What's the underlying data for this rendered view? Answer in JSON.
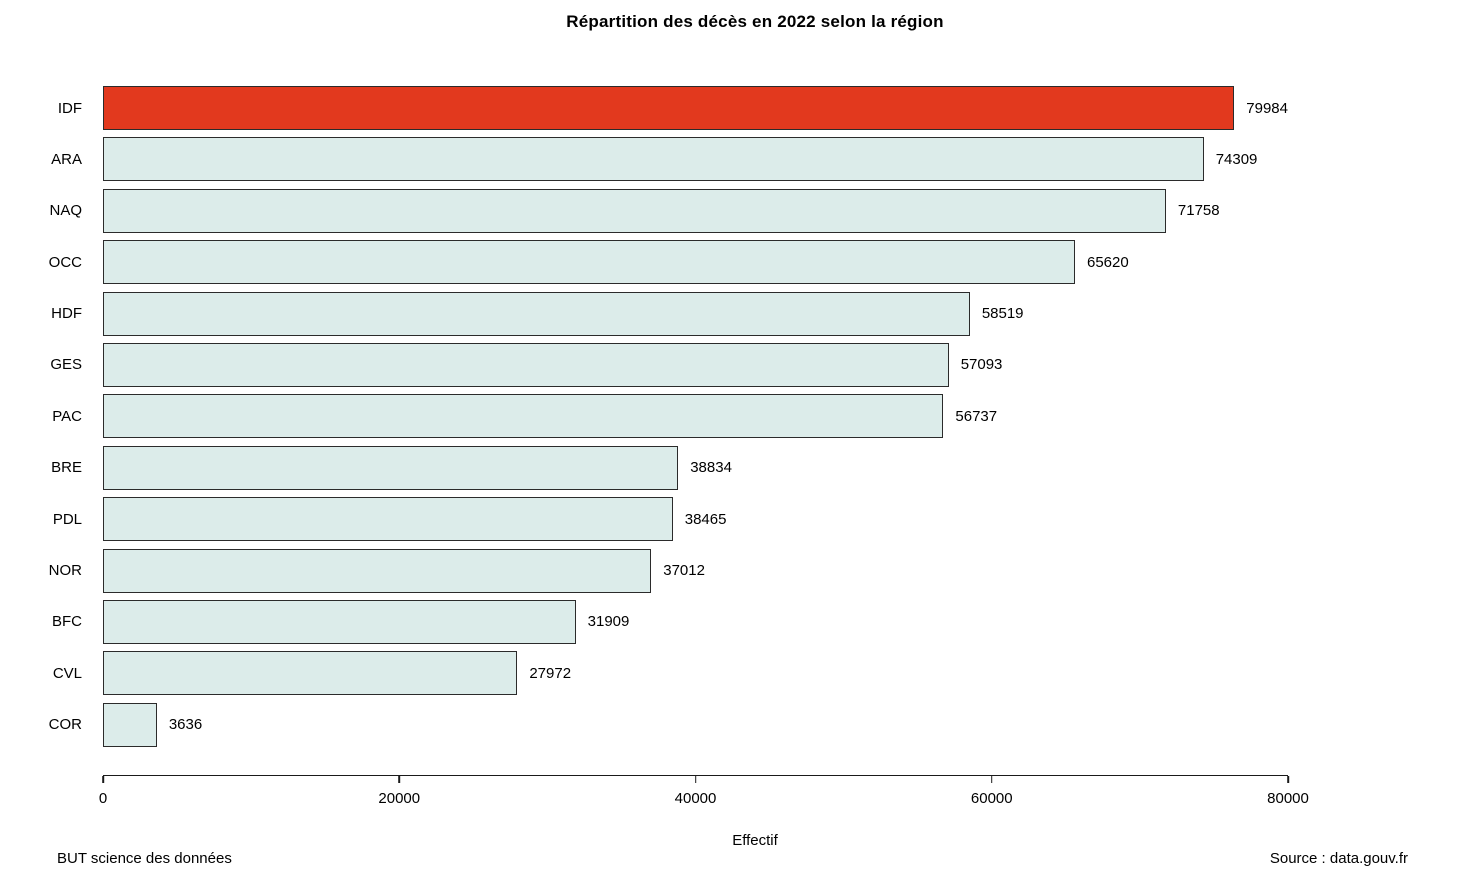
{
  "title": "Répartition des décès en 2022 selon la région",
  "footer": {
    "left": "BUT science des données",
    "right": "Source : data.gouv.fr"
  },
  "chart_data": {
    "type": "bar",
    "orientation": "horizontal",
    "title": "Répartition des décès en 2022 selon la région",
    "xlabel": "Effectif",
    "ylabel": "",
    "categories": [
      "IDF",
      "ARA",
      "NAQ",
      "OCC",
      "HDF",
      "GES",
      "PAC",
      "BRE",
      "PDL",
      "NOR",
      "BFC",
      "CVL",
      "COR"
    ],
    "values": [
      79984,
      74309,
      71758,
      65620,
      58519,
      57093,
      56737,
      38834,
      38465,
      37012,
      31909,
      27972,
      3636
    ],
    "xlim": [
      0,
      80000
    ],
    "x_ticks": [
      0,
      20000,
      40000,
      60000,
      80000
    ],
    "grid": "off",
    "legend": "none",
    "highlight_index": 0,
    "highlight_color": "#e2391e",
    "bar_color": "#dcecea",
    "bar_border_color": "#2b2b2b"
  }
}
